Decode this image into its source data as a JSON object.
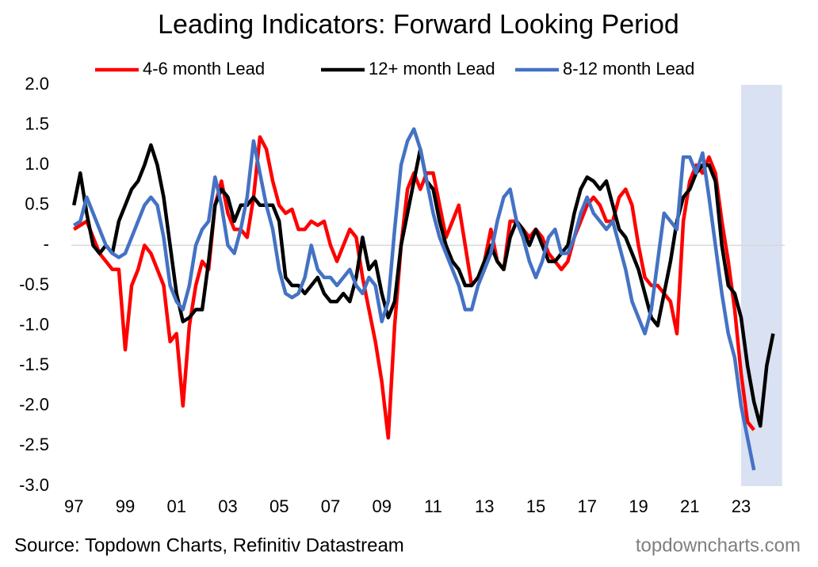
{
  "chart_data": {
    "type": "line",
    "title": "Leading Indicators: Forward Looking Period",
    "source": "Source: Topdown Charts, Refinitiv Datastream",
    "watermark": "topdowncharts.com",
    "highlight": [
      2023,
      2024.6
    ],
    "highlight_color": "#d9e1f2",
    "xlim": [
      1996.9,
      2024.7
    ],
    "ylim": [
      -3,
      2
    ],
    "xticks": [
      {
        "value": 1997,
        "label": "97"
      },
      {
        "value": 1999,
        "label": "99"
      },
      {
        "value": 2001,
        "label": "01"
      },
      {
        "value": 2003,
        "label": "03"
      },
      {
        "value": 2005,
        "label": "05"
      },
      {
        "value": 2007,
        "label": "07"
      },
      {
        "value": 2009,
        "label": "09"
      },
      {
        "value": 2011,
        "label": "11"
      },
      {
        "value": 2013,
        "label": "13"
      },
      {
        "value": 2015,
        "label": "15"
      },
      {
        "value": 2017,
        "label": "17"
      },
      {
        "value": 2019,
        "label": "19"
      },
      {
        "value": 2021,
        "label": "21"
      },
      {
        "value": 2023,
        "label": "23"
      }
    ],
    "yticks": [
      {
        "value": 2,
        "label": "2.0"
      },
      1.5,
      {
        "value": 1,
        "label": "1.0"
      },
      0.5,
      {
        "value": 0,
        "label": "-"
      },
      -0.5,
      {
        "value": -1,
        "label": "-1.0"
      },
      -1.5,
      {
        "value": -2,
        "label": "-2.0"
      },
      -2.5,
      {
        "value": -3,
        "label": "-3.0"
      }
    ],
    "x": [
      1997,
      1997.25,
      1997.5,
      1997.75,
      1998,
      1998.25,
      1998.5,
      1998.75,
      1999,
      1999.25,
      1999.5,
      1999.75,
      2000,
      2000.25,
      2000.5,
      2000.75,
      2001,
      2001.25,
      2001.5,
      2001.75,
      2002,
      2002.25,
      2002.5,
      2002.75,
      2003,
      2003.25,
      2003.5,
      2003.75,
      2004,
      2004.25,
      2004.5,
      2004.75,
      2005,
      2005.25,
      2005.5,
      2005.75,
      2006,
      2006.25,
      2006.5,
      2006.75,
      2007,
      2007.25,
      2007.5,
      2007.75,
      2008,
      2008.25,
      2008.5,
      2008.75,
      2009,
      2009.25,
      2009.5,
      2009.75,
      2010,
      2010.25,
      2010.5,
      2010.75,
      2011,
      2011.25,
      2011.5,
      2011.75,
      2012,
      2012.25,
      2012.5,
      2012.75,
      2013,
      2013.25,
      2013.5,
      2013.75,
      2014,
      2014.25,
      2014.5,
      2014.75,
      2015,
      2015.25,
      2015.5,
      2015.75,
      2016,
      2016.25,
      2016.5,
      2016.75,
      2017,
      2017.25,
      2017.5,
      2017.75,
      2018,
      2018.25,
      2018.5,
      2018.75,
      2019,
      2019.25,
      2019.5,
      2019.75,
      2020,
      2020.25,
      2020.5,
      2020.75,
      2021,
      2021.25,
      2021.5,
      2021.75,
      2022,
      2022.25,
      2022.5,
      2022.75,
      2023,
      2023.25,
      2023.5,
      2023.75,
      2024,
      2024.25
    ],
    "series": [
      {
        "name": "4-6 month Lead",
        "color": "#ff0000",
        "values": [
          0.2,
          0.25,
          0.3,
          0.1,
          -0.1,
          -0.2,
          -0.3,
          -0.3,
          -1.3,
          -0.5,
          -0.3,
          0.0,
          -0.1,
          -0.3,
          -0.5,
          -1.2,
          -1.1,
          -2.0,
          -1.0,
          -0.5,
          -0.2,
          -0.3,
          0.5,
          0.8,
          0.4,
          0.2,
          0.2,
          0.1,
          0.6,
          1.35,
          1.2,
          0.8,
          0.5,
          0.4,
          0.45,
          0.2,
          0.2,
          0.3,
          0.25,
          0.3,
          0.0,
          -0.2,
          0.0,
          0.2,
          0.1,
          -0.4,
          -0.8,
          -1.2,
          -1.7,
          -2.4,
          -1.0,
          0.0,
          0.7,
          0.9,
          0.7,
          0.9,
          0.9,
          0.5,
          0.1,
          0.3,
          0.5,
          0.0,
          -0.5,
          -0.4,
          -0.2,
          0.2,
          -0.2,
          -0.3,
          0.3,
          0.3,
          0.2,
          0.1,
          0.2,
          0.1,
          -0.1,
          -0.2,
          -0.3,
          -0.2,
          0.1,
          0.3,
          0.5,
          0.6,
          0.5,
          0.3,
          0.3,
          0.6,
          0.7,
          0.5,
          0.0,
          -0.4,
          -0.5,
          -0.5,
          -0.6,
          -0.7,
          -1.1,
          0.3,
          0.8,
          1.0,
          0.9,
          1.1,
          0.9,
          0.3,
          -0.2,
          -0.8,
          -1.6,
          -2.2,
          -2.3,
          null,
          null,
          null
        ]
      },
      {
        "name": "12+ month Lead",
        "color": "#000000",
        "values": [
          0.5,
          0.9,
          0.4,
          0.0,
          -0.1,
          0.0,
          -0.1,
          0.3,
          0.5,
          0.7,
          0.8,
          1.0,
          1.25,
          1.0,
          0.6,
          0.0,
          -0.6,
          -0.95,
          -0.9,
          -0.8,
          -0.8,
          -0.2,
          0.5,
          0.7,
          0.6,
          0.3,
          0.5,
          0.5,
          0.6,
          0.5,
          0.5,
          0.5,
          0.3,
          -0.4,
          -0.5,
          -0.5,
          -0.6,
          -0.5,
          -0.4,
          -0.6,
          -0.7,
          -0.7,
          -0.6,
          -0.7,
          -0.4,
          0.1,
          -0.3,
          -0.2,
          -0.6,
          -0.9,
          -0.7,
          0.0,
          0.4,
          0.8,
          1.2,
          0.8,
          0.7,
          0.3,
          0.0,
          -0.2,
          -0.3,
          -0.5,
          -0.5,
          -0.4,
          -0.2,
          0.0,
          -0.2,
          -0.3,
          0.1,
          0.3,
          0.2,
          0.0,
          0.2,
          0.0,
          -0.2,
          -0.2,
          -0.1,
          0.0,
          0.4,
          0.7,
          0.85,
          0.8,
          0.7,
          0.8,
          0.5,
          0.2,
          0.1,
          -0.1,
          -0.3,
          -0.6,
          -0.9,
          -1.0,
          -0.6,
          -0.2,
          0.3,
          0.6,
          0.7,
          0.9,
          1.0,
          1.0,
          0.8,
          0.0,
          -0.5,
          -0.6,
          -0.9,
          -1.5,
          -1.95,
          -2.25,
          -1.5,
          -1.1
        ]
      },
      {
        "name": "8-12 month Lead",
        "color": "#4472c4",
        "values": [
          0.25,
          0.3,
          0.6,
          0.4,
          0.2,
          0.0,
          -0.1,
          -0.15,
          -0.1,
          0.1,
          0.3,
          0.5,
          0.6,
          0.5,
          0.1,
          -0.5,
          -0.7,
          -0.8,
          -0.5,
          0.0,
          0.2,
          0.3,
          0.85,
          0.5,
          0.0,
          -0.1,
          0.2,
          0.6,
          1.3,
          0.9,
          0.5,
          0.2,
          -0.3,
          -0.6,
          -0.65,
          -0.6,
          -0.4,
          0.0,
          -0.3,
          -0.4,
          -0.4,
          -0.5,
          -0.4,
          -0.3,
          -0.5,
          -0.6,
          -0.4,
          -0.5,
          -0.95,
          -0.7,
          0.2,
          1.0,
          1.3,
          1.45,
          1.2,
          0.8,
          0.4,
          0.1,
          -0.1,
          -0.3,
          -0.5,
          -0.8,
          -0.8,
          -0.5,
          -0.3,
          -0.1,
          0.3,
          0.6,
          0.7,
          0.3,
          0.1,
          -0.2,
          -0.4,
          -0.2,
          0.1,
          0.2,
          -0.1,
          -0.1,
          0.1,
          0.4,
          0.6,
          0.4,
          0.3,
          0.2,
          0.3,
          0.0,
          -0.3,
          -0.7,
          -0.9,
          -1.1,
          -0.8,
          -0.2,
          0.4,
          0.3,
          0.2,
          1.1,
          1.1,
          0.9,
          1.15,
          0.6,
          0.0,
          -0.6,
          -1.1,
          -1.4,
          -2.0,
          -2.4,
          -2.8,
          null,
          null,
          null
        ]
      }
    ]
  }
}
